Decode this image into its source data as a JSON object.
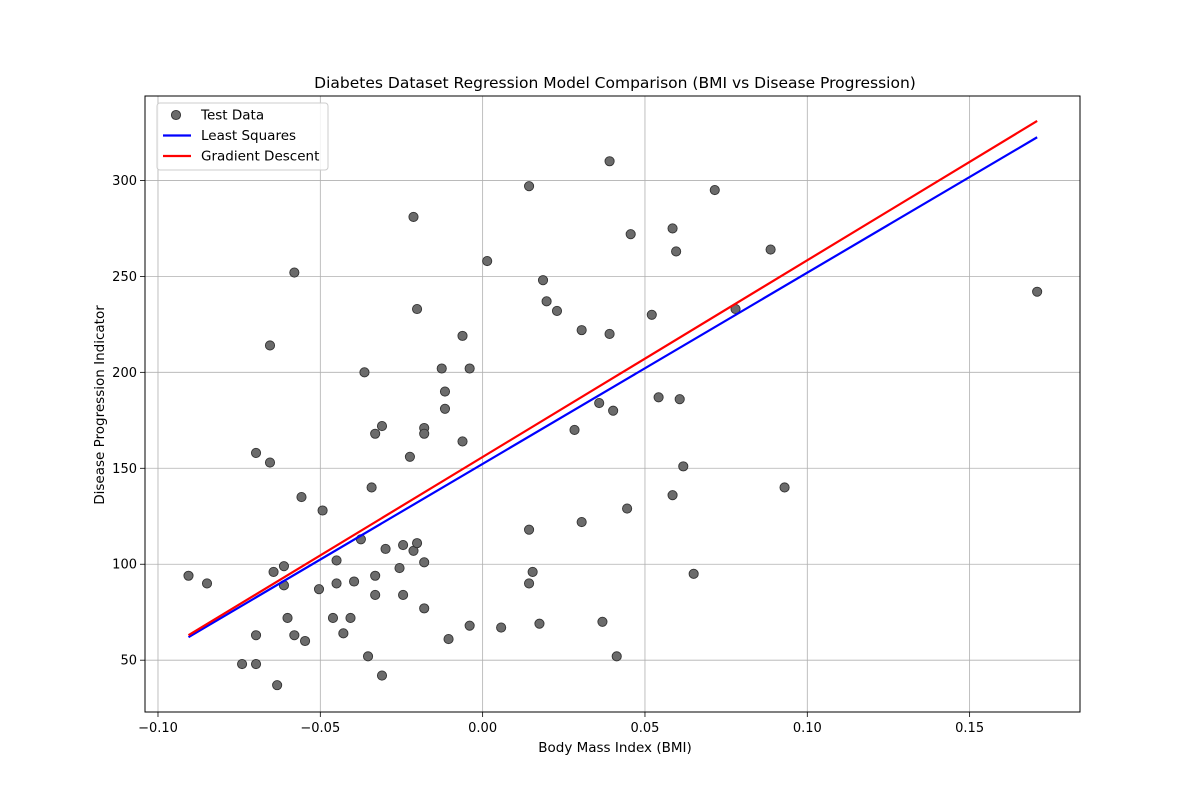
{
  "chart_data": {
    "type": "scatter",
    "title": "Diabetes Dataset Regression Model Comparison (BMI vs Disease Progression)",
    "xlabel": "Body Mass Index (BMI)",
    "ylabel": "Disease Progression Indicator",
    "xlim": [
      -0.104,
      0.184
    ],
    "ylim": [
      23,
      344
    ],
    "xticks": [
      -0.1,
      -0.05,
      0.0,
      0.05,
      0.1,
      0.15
    ],
    "xtick_labels": [
      "−0.10",
      "−0.05",
      "0.00",
      "0.05",
      "0.10",
      "0.15"
    ],
    "yticks": [
      50,
      100,
      150,
      200,
      250,
      300
    ],
    "ytick_labels": [
      "50",
      "100",
      "150",
      "200",
      "250",
      "300"
    ],
    "grid": true,
    "legend_position": "top-left",
    "series": [
      {
        "name": "Test Data",
        "kind": "scatter",
        "color": "#6b6b6b",
        "edge_color": "#333333",
        "points": [
          [
            -0.0906,
            94
          ],
          [
            -0.0849,
            90
          ],
          [
            -0.0741,
            48
          ],
          [
            -0.0698,
            48
          ],
          [
            -0.0698,
            63
          ],
          [
            -0.0698,
            158
          ],
          [
            -0.0655,
            153
          ],
          [
            -0.0655,
            214
          ],
          [
            -0.0644,
            96
          ],
          [
            -0.0633,
            37
          ],
          [
            -0.0612,
            99
          ],
          [
            -0.0612,
            89
          ],
          [
            -0.0601,
            72
          ],
          [
            -0.058,
            63
          ],
          [
            -0.058,
            252
          ],
          [
            -0.0558,
            135
          ],
          [
            -0.0547,
            60
          ],
          [
            -0.0504,
            87
          ],
          [
            -0.0493,
            128
          ],
          [
            -0.0461,
            72
          ],
          [
            -0.045,
            102
          ],
          [
            -0.045,
            90
          ],
          [
            -0.0429,
            64
          ],
          [
            -0.0407,
            72
          ],
          [
            -0.0396,
            91
          ],
          [
            -0.0375,
            113
          ],
          [
            -0.0364,
            200
          ],
          [
            -0.0353,
            52
          ],
          [
            -0.0342,
            140
          ],
          [
            -0.0331,
            168
          ],
          [
            -0.0331,
            94
          ],
          [
            -0.0331,
            84
          ],
          [
            -0.031,
            172
          ],
          [
            -0.031,
            42
          ],
          [
            -0.0299,
            108
          ],
          [
            -0.0256,
            98
          ],
          [
            -0.0245,
            110
          ],
          [
            -0.0245,
            84
          ],
          [
            -0.0224,
            156
          ],
          [
            -0.0213,
            281
          ],
          [
            -0.0213,
            107
          ],
          [
            -0.0202,
            111
          ],
          [
            -0.0202,
            233
          ],
          [
            -0.018,
            101
          ],
          [
            -0.018,
            77
          ],
          [
            -0.018,
            171
          ],
          [
            -0.018,
            168
          ],
          [
            -0.0126,
            202
          ],
          [
            -0.0116,
            190
          ],
          [
            -0.0116,
            181
          ],
          [
            -0.0105,
            61
          ],
          [
            -0.0062,
            219
          ],
          [
            -0.0062,
            164
          ],
          [
            -0.004,
            202
          ],
          [
            -0.004,
            68
          ],
          [
            0.0014,
            258
          ],
          [
            0.0057,
            67
          ],
          [
            0.0143,
            297
          ],
          [
            0.0143,
            118
          ],
          [
            0.0143,
            90
          ],
          [
            0.0154,
            96
          ],
          [
            0.0175,
            69
          ],
          [
            0.0186,
            248
          ],
          [
            0.0197,
            237
          ],
          [
            0.0229,
            232
          ],
          [
            0.0283,
            170
          ],
          [
            0.0305,
            222
          ],
          [
            0.0305,
            122
          ],
          [
            0.0359,
            184
          ],
          [
            0.0369,
            70
          ],
          [
            0.0391,
            220
          ],
          [
            0.0391,
            310
          ],
          [
            0.0402,
            180
          ],
          [
            0.0413,
            52
          ],
          [
            0.0445,
            129
          ],
          [
            0.0456,
            272
          ],
          [
            0.0521,
            230
          ],
          [
            0.0542,
            187
          ],
          [
            0.0585,
            275
          ],
          [
            0.0585,
            136
          ],
          [
            0.0596,
            263
          ],
          [
            0.0607,
            186
          ],
          [
            0.0618,
            151
          ],
          [
            0.065,
            95
          ],
          [
            0.0715,
            295
          ],
          [
            0.0779,
            233
          ],
          [
            0.0887,
            264
          ],
          [
            0.093,
            140
          ],
          [
            0.1708,
            242
          ]
        ]
      },
      {
        "name": "Least Squares",
        "kind": "line",
        "color": "#0000ff",
        "points": [
          [
            -0.0906,
            62
          ],
          [
            0.1708,
            322.5
          ]
        ]
      },
      {
        "name": "Gradient Descent",
        "kind": "line",
        "color": "#ff0000",
        "points": [
          [
            -0.0906,
            63
          ],
          [
            0.1708,
            331
          ]
        ]
      }
    ]
  }
}
